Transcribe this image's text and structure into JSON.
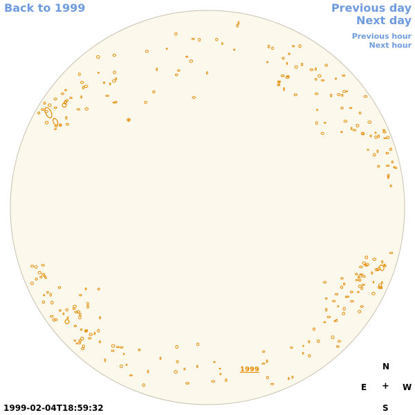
{
  "nav": {
    "back_label": "Back to 1999",
    "prev_day_label": "Previous day",
    "next_day_label": "Next day",
    "prev_hour_label": "Previous hour",
    "next_hour_label": "Next hour"
  },
  "map": {
    "year_marker": "1999",
    "timestamp": "1999-02-04T18:59:32",
    "disk_fill": "#fdf8ec",
    "disk_stroke": "#c8c0b0",
    "contour_color": "#e58a00",
    "link_color": "#6f9be0"
  },
  "compass": {
    "north": "N",
    "east": "E",
    "west": "W",
    "south": "S",
    "center": "+"
  }
}
